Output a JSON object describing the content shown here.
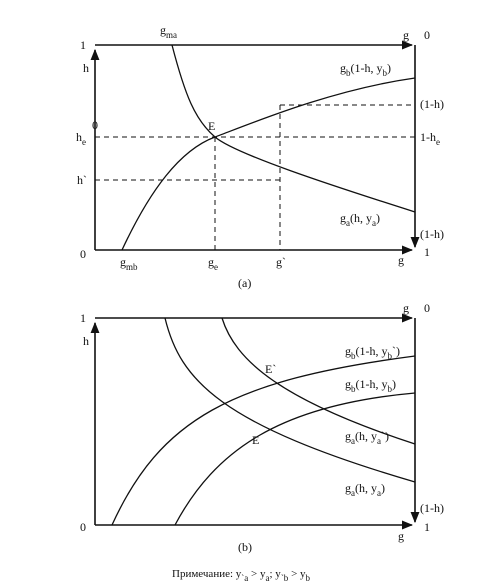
{
  "panel_a": {
    "top_left": "1",
    "top_axis_label": "g",
    "top_right": "0",
    "curve_a_top": [
      "g",
      "ma"
    ],
    "left_axis_label": "h",
    "he_mark": "0",
    "he_label": [
      "h",
      "e"
    ],
    "hprime_label": "h`",
    "curve_b_label": [
      "g",
      "b",
      "(1-h, y",
      "b",
      ")"
    ],
    "right_upper": "(1-h)",
    "right_he": [
      "1-h",
      "e"
    ],
    "curve_a_label": [
      "g",
      "a",
      "(h, y",
      "a",
      ")"
    ],
    "right_lower": "(1-h)",
    "point_e": "E",
    "bottom_left": "0",
    "g_mb": [
      "g",
      "mb"
    ],
    "g_e": [
      "g",
      "e"
    ],
    "g_prime": "g`",
    "bottom_axis_label": "g",
    "bottom_right": "1",
    "caption": "(a)"
  },
  "panel_b": {
    "top_left": "1",
    "top_axis_label": "g",
    "top_right": "0",
    "left_axis_label": "h",
    "curve_b1_label": [
      "g",
      "b",
      "(1-h, y",
      "b",
      "`)"
    ],
    "curve_b2_label": [
      "g",
      "b",
      "(1-h, y",
      "b",
      ")"
    ],
    "curve_a1_label": [
      "g",
      "a",
      "(h, y",
      "a",
      "`)"
    ],
    "curve_a2_label": [
      "g",
      "a",
      "(h, y",
      "a",
      ")"
    ],
    "point_e_prime": "E`",
    "point_e": "E",
    "right_lower": "(1-h)",
    "bottom_left": "0",
    "bottom_axis_label": "g",
    "bottom_right": "1",
    "caption": "(b)"
  },
  "note": [
    "Примечание: y",
    "`a",
    " > y",
    "a",
    "; y",
    "`b",
    " > y",
    "b"
  ]
}
